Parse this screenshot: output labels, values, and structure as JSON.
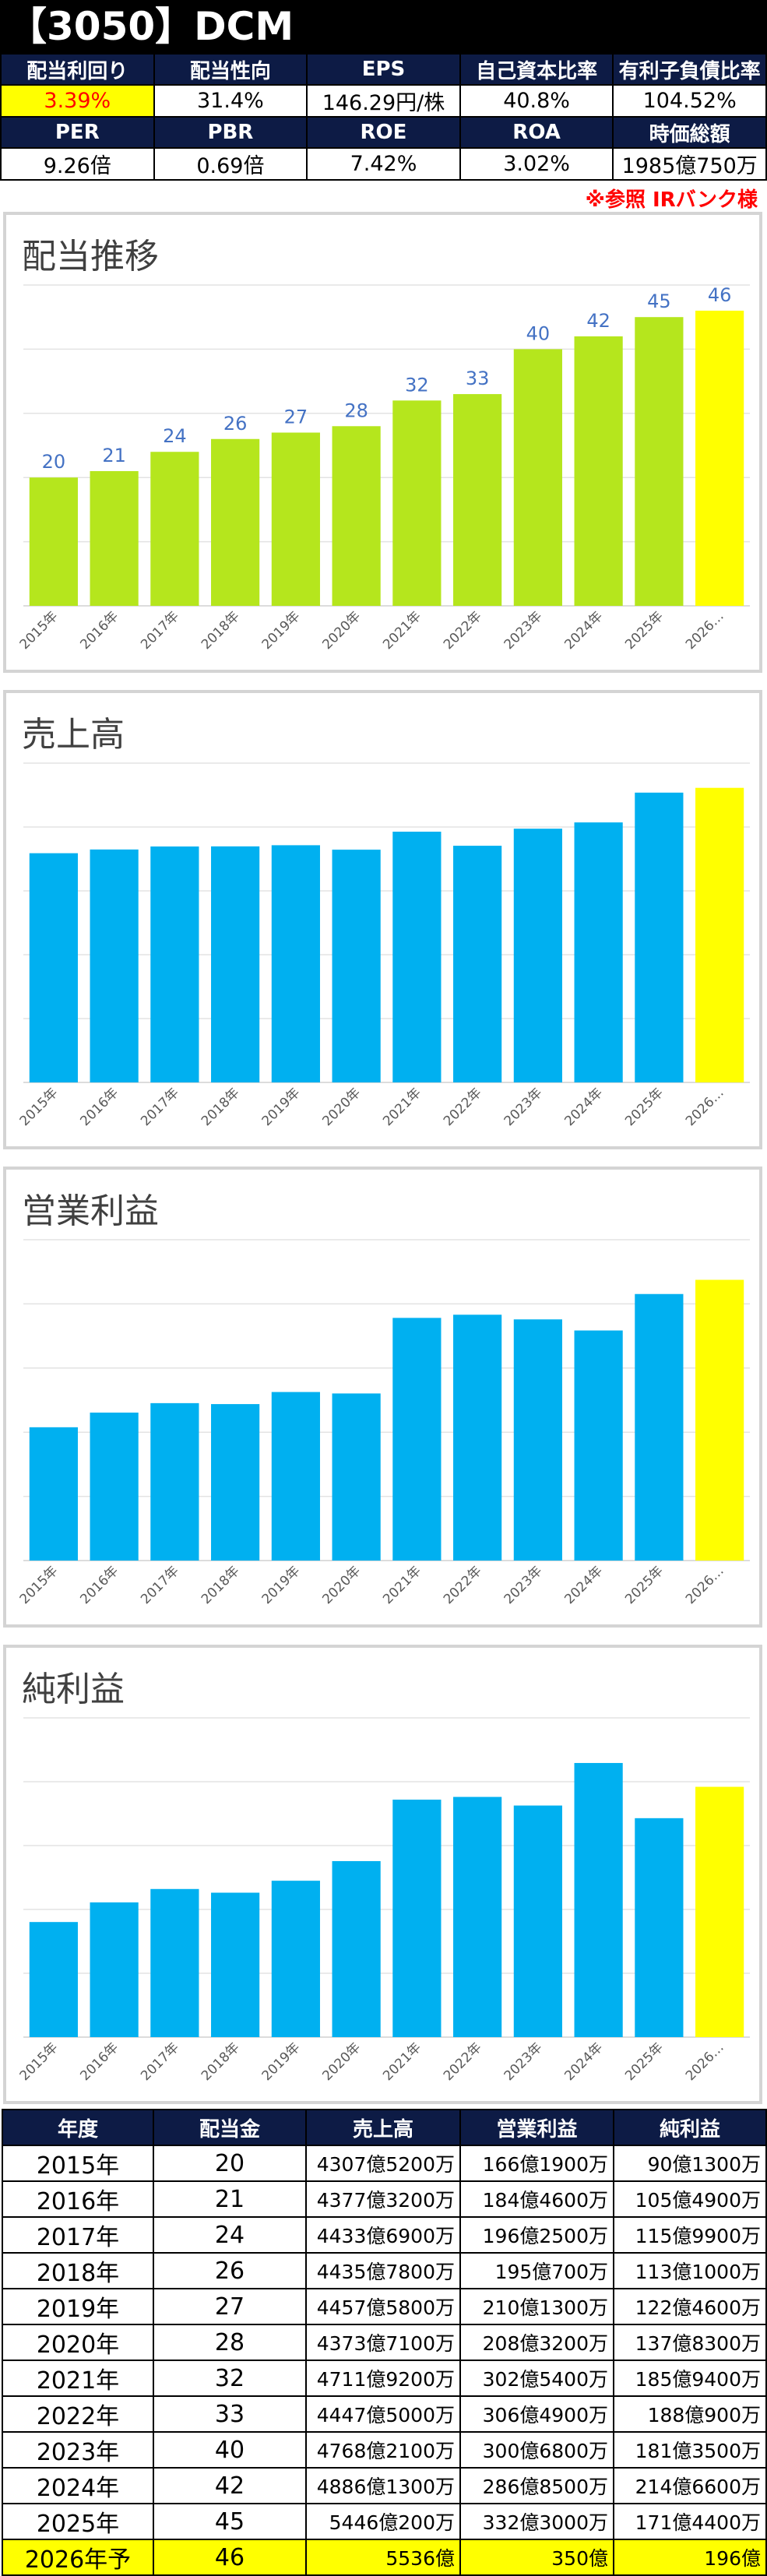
{
  "header": {
    "title": "【3050】DCM"
  },
  "stats": {
    "row1_labels": [
      "配当利回り",
      "配当性向",
      "EPS",
      "自己資本比率",
      "有利子負債比率"
    ],
    "row1_values": [
      "3.39%",
      "31.4%",
      "146.29円/株",
      "40.8%",
      "104.52%"
    ],
    "row2_labels": [
      "PER",
      "PBR",
      "ROE",
      "ROA",
      "時価総額"
    ],
    "row2_values": [
      "9.26倍",
      "0.69倍",
      "7.42%",
      "3.02%",
      "1985億750万"
    ]
  },
  "note": "※参照 IRバンク様",
  "colors": {
    "dividend_bar": "#b5e61d",
    "bar": "#00b0f0",
    "forecast_bar": "#ffff00",
    "header_bg": "#0d1b45",
    "label_blue": "#4472c4"
  },
  "chart_data": [
    {
      "type": "bar",
      "title": "配当推移",
      "categories": [
        "2015年",
        "2016年",
        "2017年",
        "2018年",
        "2019年",
        "2020年",
        "2021年",
        "2022年",
        "2023年",
        "2024年",
        "2025年",
        "2026…"
      ],
      "values": [
        20,
        21,
        24,
        26,
        27,
        28,
        32,
        33,
        40,
        42,
        45,
        46
      ],
      "data_labels": [
        "20",
        "21",
        "24",
        "26",
        "27",
        "28",
        "32",
        "33",
        "40",
        "42",
        "45",
        "46"
      ],
      "ylim": [
        0,
        50
      ],
      "grid": true
    },
    {
      "type": "bar",
      "title": "売上高",
      "categories": [
        "2015年",
        "2016年",
        "2017年",
        "2018年",
        "2019年",
        "2020年",
        "2021年",
        "2022年",
        "2023年",
        "2024年",
        "2025年",
        "2026…"
      ],
      "values": [
        4307.52,
        4377.32,
        4433.69,
        4435.78,
        4457.58,
        4373.71,
        4711.92,
        4447.5,
        4768.21,
        4886.13,
        5446.02,
        5536
      ],
      "ylim": [
        0,
        6000
      ],
      "grid": true
    },
    {
      "type": "bar",
      "title": "営業利益",
      "categories": [
        "2015年",
        "2016年",
        "2017年",
        "2018年",
        "2019年",
        "2020年",
        "2021年",
        "2022年",
        "2023年",
        "2024年",
        "2025年",
        "2026…"
      ],
      "values": [
        166.19,
        184.46,
        196.25,
        195.07,
        210.13,
        208.32,
        302.54,
        306.49,
        300.68,
        286.85,
        332.3,
        350
      ],
      "ylim": [
        0,
        400
      ],
      "grid": true
    },
    {
      "type": "bar",
      "title": "純利益",
      "categories": [
        "2015年",
        "2016年",
        "2017年",
        "2018年",
        "2019年",
        "2020年",
        "2021年",
        "2022年",
        "2023年",
        "2024年",
        "2025年",
        "2026…"
      ],
      "values": [
        90.13,
        105.49,
        115.99,
        113.1,
        122.46,
        137.83,
        185.94,
        188.09,
        181.35,
        214.66,
        171.44,
        196
      ],
      "ylim": [
        0,
        250
      ],
      "grid": true
    }
  ],
  "table": {
    "headers": [
      "年度",
      "配当金",
      "売上高",
      "営業利益",
      "純利益"
    ],
    "rows": [
      [
        "2015年",
        "20",
        "4307億5200万",
        "166億1900万",
        "90億1300万"
      ],
      [
        "2016年",
        "21",
        "4377億3200万",
        "184億4600万",
        "105億4900万"
      ],
      [
        "2017年",
        "24",
        "4433億6900万",
        "196億2500万",
        "115億9900万"
      ],
      [
        "2018年",
        "26",
        "4435億7800万",
        "195億700万",
        "113億1000万"
      ],
      [
        "2019年",
        "27",
        "4457億5800万",
        "210億1300万",
        "122億4600万"
      ],
      [
        "2020年",
        "28",
        "4373億7100万",
        "208億3200万",
        "137億8300万"
      ],
      [
        "2021年",
        "32",
        "4711億9200万",
        "302億5400万",
        "185億9400万"
      ],
      [
        "2022年",
        "33",
        "4447億5000万",
        "306億4900万",
        "188億900万"
      ],
      [
        "2023年",
        "40",
        "4768億2100万",
        "300億6800万",
        "181億3500万"
      ],
      [
        "2024年",
        "42",
        "4886億1300万",
        "286億8500万",
        "214億6600万"
      ],
      [
        "2025年",
        "45",
        "5446億200万",
        "332億3000万",
        "171億4400万"
      ],
      [
        "2026年予",
        "46",
        "5536億",
        "350億",
        "196億"
      ]
    ]
  }
}
